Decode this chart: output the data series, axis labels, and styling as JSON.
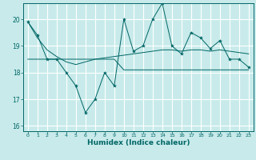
{
  "xlabel": "Humidex (Indice chaleur)",
  "ylabel": "",
  "background_color": "#c8eaea",
  "grid_color": "#ffffff",
  "line_color": "#006666",
  "xlim": [
    -0.5,
    23.5
  ],
  "ylim": [
    15.8,
    20.6
  ],
  "yticks": [
    16,
    17,
    18,
    19,
    20
  ],
  "xticks": [
    0,
    1,
    2,
    3,
    4,
    5,
    6,
    7,
    8,
    9,
    10,
    11,
    12,
    13,
    14,
    15,
    16,
    17,
    18,
    19,
    20,
    21,
    22,
    23
  ],
  "series1_x": [
    0,
    1,
    2,
    3,
    4,
    5,
    6,
    7,
    8,
    9,
    10,
    11,
    12,
    13,
    14,
    15,
    16,
    17,
    18,
    19,
    20,
    21,
    22,
    23
  ],
  "series1_y": [
    19.9,
    19.4,
    18.5,
    18.5,
    18.0,
    17.5,
    16.5,
    17.0,
    18.0,
    17.5,
    20.0,
    18.8,
    19.0,
    20.0,
    20.6,
    19.0,
    18.7,
    19.5,
    19.3,
    18.9,
    19.2,
    18.5,
    18.5,
    18.2
  ],
  "series2_x": [
    0,
    1,
    2,
    3,
    4,
    5,
    6,
    7,
    8,
    9,
    10,
    11,
    12,
    13,
    14,
    15,
    16,
    17,
    18,
    19,
    20,
    21,
    22,
    23
  ],
  "series2_y": [
    18.5,
    18.5,
    18.5,
    18.5,
    18.5,
    18.5,
    18.5,
    18.5,
    18.5,
    18.5,
    18.1,
    18.1,
    18.1,
    18.1,
    18.1,
    18.1,
    18.1,
    18.1,
    18.1,
    18.1,
    18.1,
    18.1,
    18.1,
    18.1
  ],
  "series3_x": [
    0,
    1,
    2,
    3,
    4,
    5,
    6,
    7,
    8,
    9,
    10,
    11,
    12,
    13,
    14,
    15,
    16,
    17,
    18,
    19,
    20,
    21,
    22,
    23
  ],
  "series3_y": [
    19.9,
    19.3,
    18.85,
    18.6,
    18.4,
    18.3,
    18.4,
    18.5,
    18.55,
    18.6,
    18.65,
    18.7,
    18.75,
    18.8,
    18.85,
    18.85,
    18.8,
    18.85,
    18.85,
    18.8,
    18.85,
    18.8,
    18.75,
    18.7
  ]
}
